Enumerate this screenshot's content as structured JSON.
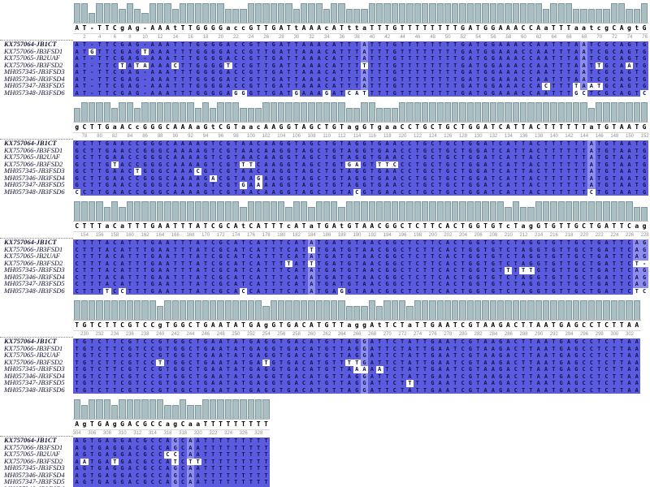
{
  "colors": {
    "match_bg": "#5b5be0",
    "light_col_bg": "#8d8df0",
    "mismatch_bg": "#ffffff",
    "base_letter": "#15154f",
    "consensus_text": "#000000",
    "bar_fill": "#aabfc3",
    "bar_border": "#7e999e",
    "ruler_text": "#909090",
    "name_text": "#111133"
  },
  "sequences": [
    {
      "name": "KX757064-JB1CT",
      "bold": true
    },
    {
      "name": "KX757066-JB3FSD1",
      "bold": false
    },
    {
      "name": "KX757065-JB2UAF",
      "bold": false
    },
    {
      "name": "KX757066-JB3FSD2",
      "bold": false
    },
    {
      "name": "MH057345-JB3FSD3",
      "bold": false
    },
    {
      "name": "MH057346-JB3FSD4",
      "bold": false
    },
    {
      "name": "MH057347-JB3FSD5",
      "bold": false
    },
    {
      "name": "MH057348-JB3FSD6",
      "bold": false
    }
  ],
  "alignment": {
    "blocks": [
      {
        "start": 1,
        "consensus": "AT-TTCgAg-AAAtTTGGGGaccGTTGATtAAAcATttaTTTGTTTTTTTTGATGGAAACCAaTTTaatcgCAgtG",
        "light_cols": [
          39,
          68
        ],
        "mismatches": [
          {
            "seq": 1,
            "col": 3,
            "base": "G"
          },
          {
            "seq": 1,
            "col": 10,
            "base": "T"
          },
          {
            "seq": 3,
            "col": 7,
            "base": "T"
          },
          {
            "seq": 3,
            "col": 9,
            "base": "T"
          },
          {
            "seq": 3,
            "col": 10,
            "base": "A"
          },
          {
            "seq": 3,
            "col": 14,
            "base": "C"
          },
          {
            "seq": 3,
            "col": 21,
            "base": "T"
          },
          {
            "seq": 3,
            "col": 39,
            "base": "T"
          },
          {
            "seq": 3,
            "col": 70,
            "base": "T"
          },
          {
            "seq": 3,
            "col": 74,
            "base": "A"
          },
          {
            "seq": 6,
            "col": 63,
            "base": "C"
          },
          {
            "seq": 6,
            "col": 67,
            "base": "T"
          },
          {
            "seq": 6,
            "col": 69,
            "base": "A"
          },
          {
            "seq": 6,
            "col": 70,
            "base": "T"
          },
          {
            "seq": 7,
            "col": 22,
            "base": "G"
          },
          {
            "seq": 7,
            "col": 23,
            "base": "G"
          },
          {
            "seq": 7,
            "col": 30,
            "base": "G"
          },
          {
            "seq": 7,
            "col": 34,
            "base": "G"
          },
          {
            "seq": 7,
            "col": 37,
            "base": "C"
          },
          {
            "seq": 7,
            "col": 38,
            "base": "A"
          },
          {
            "seq": 7,
            "col": 39,
            "base": "T"
          },
          {
            "seq": 7,
            "col": 67,
            "base": "G"
          },
          {
            "seq": 7,
            "col": 68,
            "base": "C"
          },
          {
            "seq": 7,
            "col": 76,
            "base": "C"
          }
        ]
      },
      {
        "start": 77,
        "consensus": "gCTTGaACcGGGCAAAaGtCGTaacAAGGTAGCTGTagGTgaaCCTGCTGCTGGATCATTACTTTTTTaTGTAATG",
        "light_cols": [
          69
        ],
        "mismatches": [
          {
            "seq": 3,
            "col": 6,
            "base": "T"
          },
          {
            "seq": 3,
            "col": 23,
            "base": "T"
          },
          {
            "seq": 3,
            "col": 24,
            "base": "T"
          },
          {
            "seq": 3,
            "col": 37,
            "base": "G"
          },
          {
            "seq": 3,
            "col": 38,
            "base": "A"
          },
          {
            "seq": 3,
            "col": 41,
            "base": "T"
          },
          {
            "seq": 3,
            "col": 42,
            "base": "T"
          },
          {
            "seq": 3,
            "col": 43,
            "base": "C"
          },
          {
            "seq": 4,
            "col": 9,
            "base": "T"
          },
          {
            "seq": 4,
            "col": 17,
            "base": "C"
          },
          {
            "seq": 5,
            "col": 19,
            "base": "A"
          },
          {
            "seq": 5,
            "col": 25,
            "base": "G"
          },
          {
            "seq": 6,
            "col": 23,
            "base": "G"
          },
          {
            "seq": 6,
            "col": 25,
            "base": "A"
          },
          {
            "seq": 7,
            "col": 1,
            "base": "C"
          },
          {
            "seq": 7,
            "col": 38,
            "base": "C"
          },
          {
            "seq": 7,
            "col": 69,
            "base": "C"
          }
        ]
      },
      {
        "start": 153,
        "consensus": "CTTTaCaTTTGAATTTATCGCAtCATTTcATaTGAtGTAACGGCTCTTCACTGGTGTcTagGTGTTGCTGATTCag",
        "light_cols": [
          32,
          75,
          76
        ],
        "mismatches": [
          {
            "seq": 1,
            "col": 32,
            "base": "T"
          },
          {
            "seq": 3,
            "col": 29,
            "base": "T"
          },
          {
            "seq": 3,
            "col": 32,
            "base": "T"
          },
          {
            "seq": 3,
            "col": 75,
            "base": "T"
          },
          {
            "seq": 3,
            "col": 76,
            "base": "-"
          },
          {
            "seq": 4,
            "col": 58,
            "base": "T"
          },
          {
            "seq": 4,
            "col": 60,
            "base": "T"
          },
          {
            "seq": 4,
            "col": 61,
            "base": "T"
          },
          {
            "seq": 7,
            "col": 5,
            "base": "T"
          },
          {
            "seq": 7,
            "col": 7,
            "base": "C"
          },
          {
            "seq": 7,
            "col": 23,
            "base": "C"
          },
          {
            "seq": 7,
            "col": 36,
            "base": "G"
          },
          {
            "seq": 7,
            "col": 75,
            "base": "T"
          },
          {
            "seq": 7,
            "col": 76,
            "base": "C"
          }
        ]
      },
      {
        "start": 229,
        "consensus": "TGTCTTCGTCCgTGGCTGAATATGAgGTGACATGTTaggAtTCTaTTGAATCGTAAGACTTAATGAGCCTCTTAA",
        "light_cols": [
          39
        ],
        "mismatches": [
          {
            "seq": 3,
            "col": 12,
            "base": "T"
          },
          {
            "seq": 3,
            "col": 26,
            "base": "T"
          },
          {
            "seq": 3,
            "col": 37,
            "base": "T"
          },
          {
            "seq": 3,
            "col": 38,
            "base": "T"
          },
          {
            "seq": 4,
            "col": 38,
            "base": "A"
          },
          {
            "seq": 4,
            "col": 39,
            "base": "A"
          },
          {
            "seq": 4,
            "col": 41,
            "base": "A"
          },
          {
            "seq": 6,
            "col": 45,
            "base": "T"
          }
        ]
      },
      {
        "start": 304,
        "consensus": "AgTGAgGACGCCagCaaTTTTTTTTT",
        "light_cols": [
          14,
          16
        ],
        "mismatches": [
          {
            "seq": 2,
            "col": 13,
            "base": "C"
          },
          {
            "seq": 2,
            "col": 14,
            "base": "C"
          },
          {
            "seq": 3,
            "col": 2,
            "base": "A"
          },
          {
            "seq": 3,
            "col": 6,
            "base": "T"
          },
          {
            "seq": 3,
            "col": 14,
            "base": "T"
          },
          {
            "seq": 3,
            "col": 16,
            "base": "T"
          },
          {
            "seq": 3,
            "col": 17,
            "base": "T"
          }
        ]
      }
    ]
  }
}
